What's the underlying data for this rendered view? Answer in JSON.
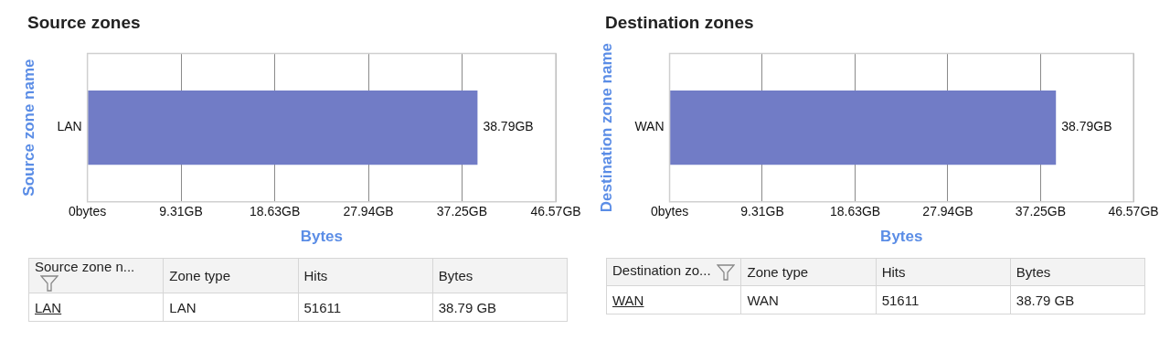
{
  "chart_data": [
    {
      "type": "bar",
      "orientation": "horizontal",
      "title": "Source zones",
      "xlabel": "Bytes",
      "ylabel": "Source zone name",
      "categories": [
        "LAN"
      ],
      "values": [
        38.79
      ],
      "value_labels": [
        "38.79GB"
      ],
      "color": "#717cc6",
      "xlim": [
        0,
        46.57
      ],
      "xticks": [
        {
          "value": 0,
          "label": "0bytes"
        },
        {
          "value": 9.31,
          "label": "9.31GB"
        },
        {
          "value": 18.63,
          "label": "18.63GB"
        },
        {
          "value": 27.94,
          "label": "27.94GB"
        },
        {
          "value": 37.25,
          "label": "37.25GB"
        },
        {
          "value": 46.57,
          "label": "46.57GB"
        }
      ],
      "grid": "x",
      "legend": false
    },
    {
      "type": "other",
      "categories": [
        "Source zone n...",
        "Zone type",
        "Hits",
        "Bytes"
      ],
      "annotations": [
        "LAN",
        "LAN",
        "51611",
        "38.79 GB"
      ]
    },
    {
      "type": "bar",
      "orientation": "horizontal",
      "title": "Destination zones",
      "xlabel": "Bytes",
      "ylabel": "Destination zone name",
      "categories": [
        "WAN"
      ],
      "values": [
        38.79
      ],
      "value_labels": [
        "38.79GB"
      ],
      "color": "#717cc6",
      "xlim": [
        0,
        46.57
      ],
      "xticks": [
        {
          "value": 0,
          "label": "0bytes"
        },
        {
          "value": 9.31,
          "label": "9.31GB"
        },
        {
          "value": 18.63,
          "label": "18.63GB"
        },
        {
          "value": 27.94,
          "label": "27.94GB"
        },
        {
          "value": 37.25,
          "label": "37.25GB"
        },
        {
          "value": 46.57,
          "label": "46.57GB"
        }
      ],
      "grid": "x",
      "legend": false
    },
    {
      "type": "other",
      "categories": [
        "Destination zo...",
        "Zone type",
        "Hits",
        "Bytes"
      ],
      "annotations": [
        "WAN",
        "WAN",
        "51611",
        "38.79 GB"
      ]
    }
  ]
}
